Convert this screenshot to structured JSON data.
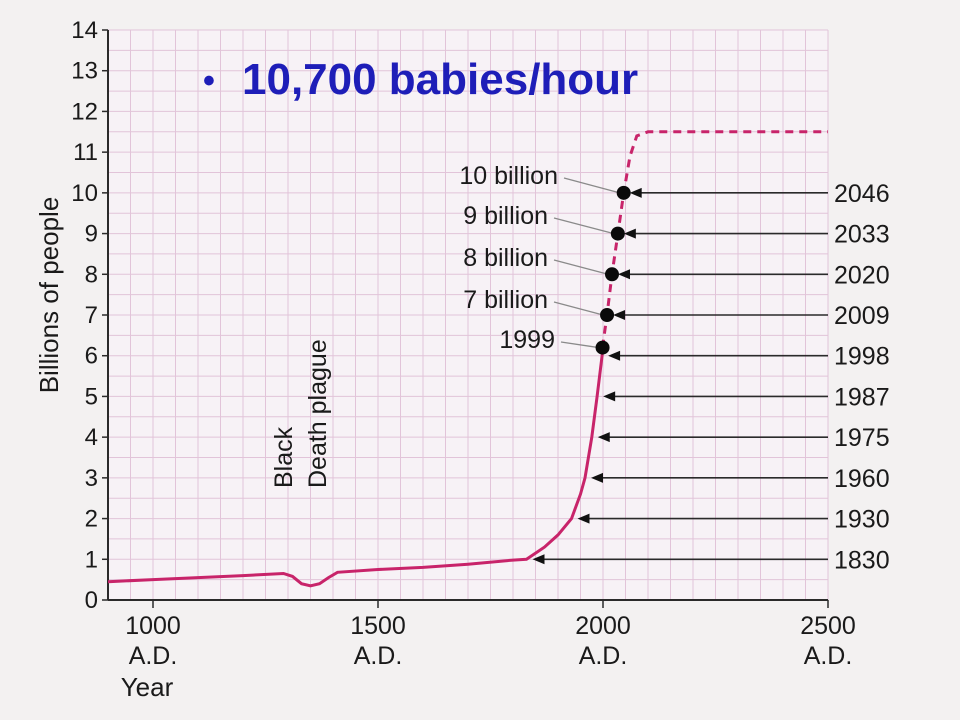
{
  "slide": {
    "bullet": "•",
    "headline": "10,700 babies/hour",
    "headline_color": "#1e1eb8"
  },
  "chart_data": {
    "type": "line",
    "title": "",
    "xlabel": "Year",
    "ylabel": "Billions of people",
    "xlim": [
      900,
      2500
    ],
    "ylim": [
      0,
      14
    ],
    "grid": true,
    "x_ticks": [
      {
        "value": 1000,
        "label": "1000",
        "sub": "A.D."
      },
      {
        "value": 1500,
        "label": "1500",
        "sub": "A.D."
      },
      {
        "value": 2000,
        "label": "2000",
        "sub": "A.D."
      },
      {
        "value": 2500,
        "label": "2500",
        "sub": "A.D."
      }
    ],
    "y_ticks": [
      0,
      1,
      2,
      3,
      4,
      5,
      6,
      7,
      8,
      9,
      10,
      11,
      12,
      13,
      14
    ],
    "series": [
      {
        "style": "solid",
        "color": "#c8246a",
        "points": [
          [
            900,
            0.45
          ],
          [
            1000,
            0.5
          ],
          [
            1100,
            0.55
          ],
          [
            1200,
            0.6
          ],
          [
            1290,
            0.65
          ],
          [
            1310,
            0.58
          ],
          [
            1330,
            0.4
          ],
          [
            1350,
            0.35
          ],
          [
            1370,
            0.4
          ],
          [
            1390,
            0.55
          ],
          [
            1410,
            0.68
          ],
          [
            1500,
            0.75
          ],
          [
            1600,
            0.8
          ],
          [
            1700,
            0.88
          ],
          [
            1800,
            0.98
          ],
          [
            1830,
            1.0
          ],
          [
            1870,
            1.3
          ],
          [
            1900,
            1.6
          ],
          [
            1930,
            2.0
          ],
          [
            1950,
            2.6
          ],
          [
            1960,
            3.0
          ],
          [
            1975,
            4.0
          ],
          [
            1987,
            5.0
          ],
          [
            1998,
            6.0
          ],
          [
            1999,
            6.2
          ]
        ]
      },
      {
        "style": "dashed",
        "color": "#c8246a",
        "points": [
          [
            1999,
            6.2
          ],
          [
            2009,
            7.0
          ],
          [
            2020,
            8.0
          ],
          [
            2033,
            9.0
          ],
          [
            2046,
            10.0
          ],
          [
            2060,
            10.9
          ],
          [
            2075,
            11.4
          ],
          [
            2100,
            11.5
          ],
          [
            2500,
            11.5
          ]
        ]
      }
    ],
    "milestone_dots": [
      {
        "year": 1999,
        "value": 6.2,
        "label": "1999"
      },
      {
        "year": 2009,
        "value": 7.0,
        "label": "7 billion"
      },
      {
        "year": 2020,
        "value": 8.0,
        "label": "8 billion"
      },
      {
        "year": 2033,
        "value": 9.0,
        "label": "9 billion"
      },
      {
        "year": 2046,
        "value": 10.0,
        "label": "10 billion"
      }
    ],
    "year_arrows": [
      {
        "year": 1830,
        "value": 1,
        "label": "1830"
      },
      {
        "year": 1930,
        "value": 2,
        "label": "1930"
      },
      {
        "year": 1960,
        "value": 3,
        "label": "1960"
      },
      {
        "year": 1975,
        "value": 4,
        "label": "1975"
      },
      {
        "year": 1987,
        "value": 5,
        "label": "1987"
      },
      {
        "year": 1998,
        "value": 6,
        "label": "1998"
      },
      {
        "year": 2009,
        "value": 7,
        "label": "2009"
      },
      {
        "year": 2020,
        "value": 8,
        "label": "2020"
      },
      {
        "year": 2033,
        "value": 9,
        "label": "2033"
      },
      {
        "year": 2046,
        "value": 10,
        "label": "2046"
      }
    ],
    "annotation": {
      "lines": [
        "Black",
        "Death plague"
      ],
      "year": 1340
    }
  }
}
